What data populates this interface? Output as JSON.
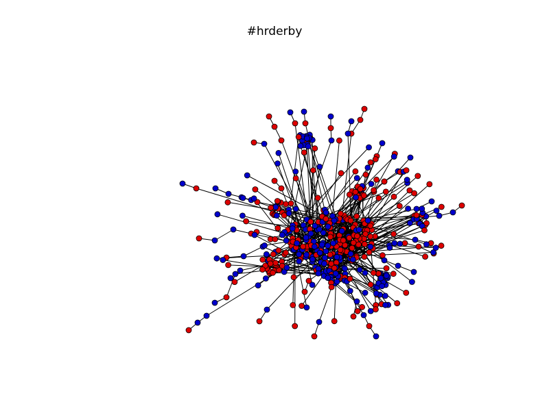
{
  "title": "#hrderby",
  "colors": {
    "background": "#ffffff",
    "edge": "#000000",
    "node_outline": "#000000",
    "red_node": "#dd0000",
    "blue_node": "#0000cc"
  },
  "legend": []
}
